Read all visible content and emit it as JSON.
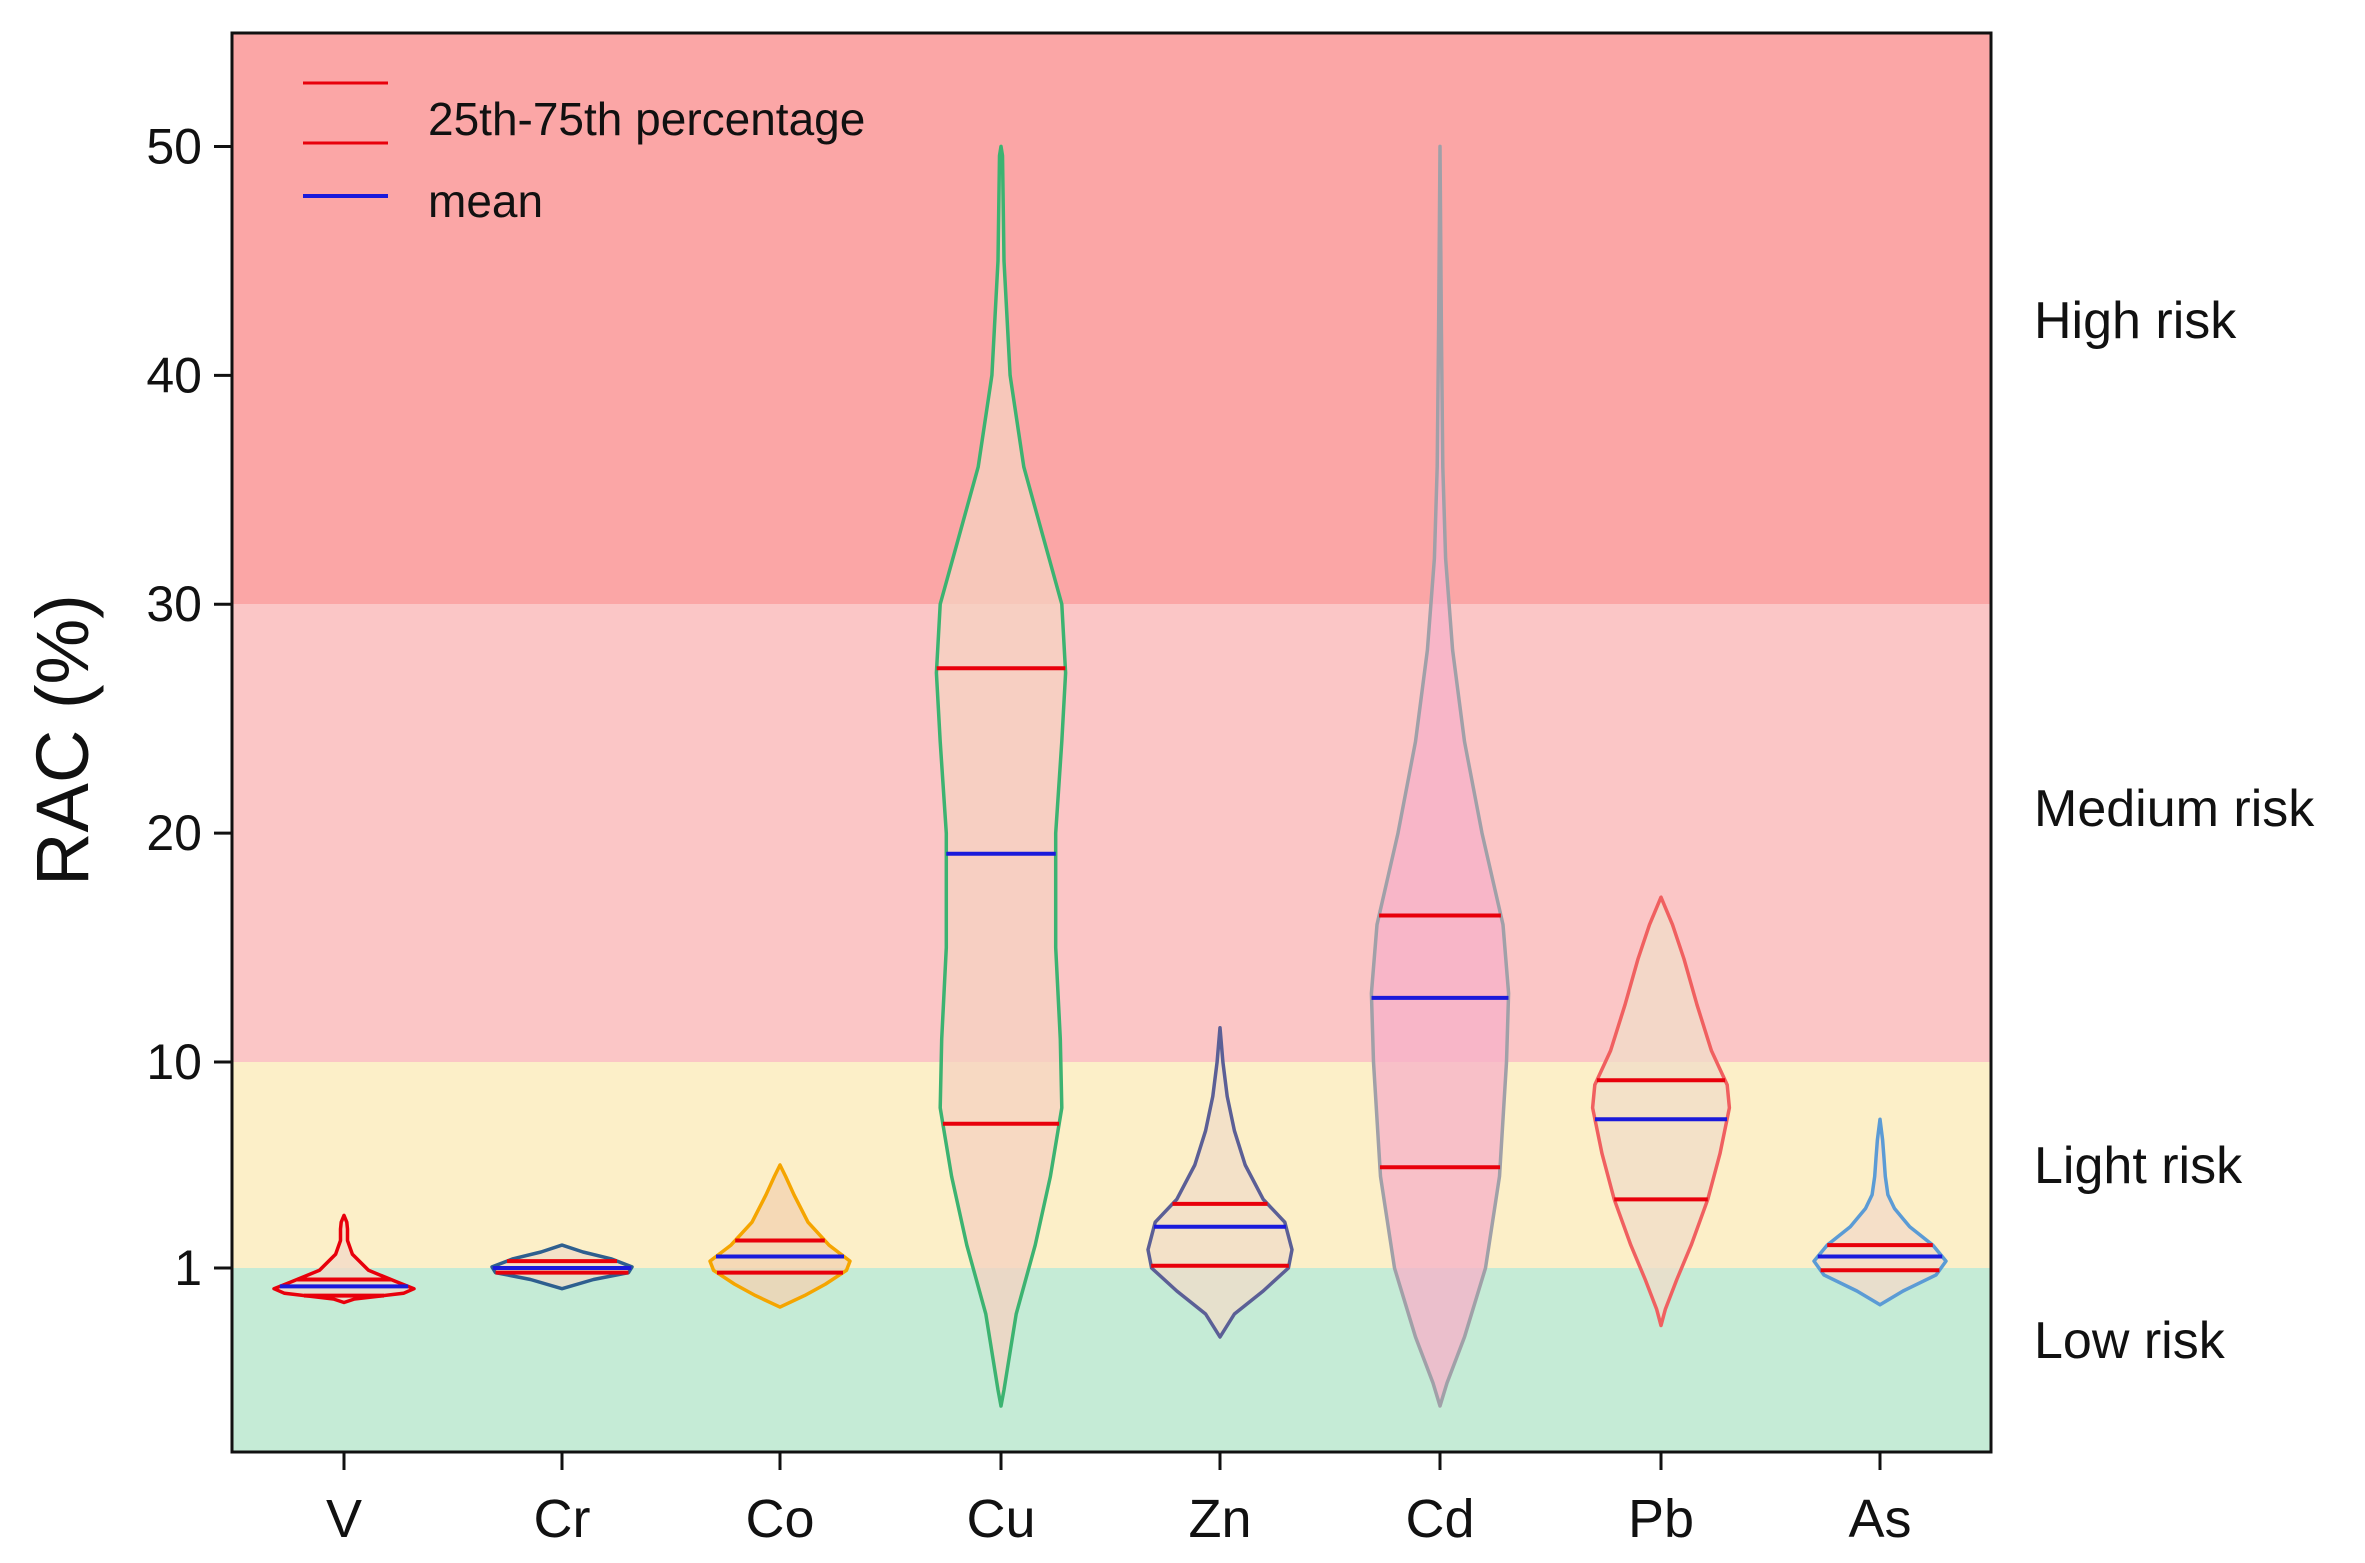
{
  "chart_data": {
    "type": "violin",
    "ylabel": "RAC (%)",
    "xlabel": "",
    "y_ticks": [
      1,
      10,
      20,
      30,
      40,
      50
    ],
    "y_tick_labels": [
      "1",
      "10",
      "20",
      "30",
      "40",
      "50"
    ],
    "ylim": [
      -7,
      55
    ],
    "categories": [
      "V",
      "Cr",
      "Co",
      "Cu",
      "Zn",
      "Cd",
      "Pb",
      "As"
    ],
    "legend": {
      "position": "top-left",
      "items": [
        {
          "label": "25th-75th percentage",
          "color": "#e8000b",
          "style": "double-line"
        },
        {
          "label": " mean",
          "color": "#1a1adb",
          "style": "line"
        }
      ]
    },
    "zones": [
      {
        "label": "Low risk",
        "from": -7,
        "to": 1,
        "color": "#c5ebd6"
      },
      {
        "label": "Light risk",
        "from": 1,
        "to": 10,
        "color": "#fcefc8"
      },
      {
        "label": "Medium risk",
        "from": 10,
        "to": 30,
        "color": "#fbc6c6"
      },
      {
        "label": "High risk",
        "from": 30,
        "to": 55,
        "color": "#fba6a6"
      }
    ],
    "violins": [
      {
        "name": "V",
        "outline": "#e8000b",
        "fill": "#f3d9c8",
        "min": -0.5,
        "max": 3.3,
        "q1": -0.2,
        "mean": 0.2,
        "q3": 0.5,
        "profile": [
          [
            -0.5,
            0.0
          ],
          [
            -0.35,
            0.15
          ],
          [
            -0.1,
            0.85
          ],
          [
            0.1,
            1.0
          ],
          [
            0.4,
            0.75
          ],
          [
            0.9,
            0.35
          ],
          [
            1.6,
            0.12
          ],
          [
            2.2,
            0.05
          ],
          [
            2.7,
            0.05
          ],
          [
            3.0,
            0.04
          ],
          [
            3.3,
            0.0
          ]
        ]
      },
      {
        "name": "Cr",
        "outline": "#2e5f8f",
        "fill": "#f0dcc8",
        "min": 0.1,
        "max": 2.0,
        "q1": 0.8,
        "mean": 1.0,
        "q3": 1.3,
        "profile": [
          [
            0.1,
            0.0
          ],
          [
            0.5,
            0.45
          ],
          [
            0.8,
            0.95
          ],
          [
            1.05,
            1.0
          ],
          [
            1.4,
            0.7
          ],
          [
            1.7,
            0.3
          ],
          [
            2.0,
            0.0
          ]
        ]
      },
      {
        "name": "Co",
        "outline": "#f5a500",
        "fill": "#f3d2b0",
        "min": -0.7,
        "max": 5.5,
        "q1": 0.8,
        "mean": 1.5,
        "q3": 2.2,
        "profile": [
          [
            -0.7,
            0.0
          ],
          [
            -0.2,
            0.35
          ],
          [
            0.3,
            0.65
          ],
          [
            0.9,
            0.95
          ],
          [
            1.3,
            1.0
          ],
          [
            2.0,
            0.7
          ],
          [
            3.0,
            0.4
          ],
          [
            4.2,
            0.2
          ],
          [
            5.0,
            0.08
          ],
          [
            5.5,
            0.0
          ]
        ]
      },
      {
        "name": "Cu",
        "outline": "#3cb371",
        "fill": "#f6d2c0",
        "min": -5.0,
        "max": 50.0,
        "q1": 7.3,
        "mean": 19.1,
        "q3": 27.2,
        "profile": [
          [
            -5.0,
            0.0
          ],
          [
            -4.3,
            0.04
          ],
          [
            -1.0,
            0.2
          ],
          [
            2.0,
            0.45
          ],
          [
            5.0,
            0.65
          ],
          [
            8.0,
            0.8
          ],
          [
            11.0,
            0.78
          ],
          [
            15.0,
            0.72
          ],
          [
            20.0,
            0.72
          ],
          [
            24.0,
            0.8
          ],
          [
            27.0,
            0.85
          ],
          [
            30.0,
            0.8
          ],
          [
            33.0,
            0.55
          ],
          [
            36.0,
            0.3
          ],
          [
            40.0,
            0.12
          ],
          [
            45.0,
            0.04
          ],
          [
            49.6,
            0.02
          ],
          [
            50.0,
            0.0
          ]
        ]
      },
      {
        "name": "Zn",
        "outline": "#5b5f96",
        "fill": "#f0dcc8",
        "min": -2.0,
        "max": 11.5,
        "q1": 1.1,
        "mean": 2.8,
        "q3": 3.8,
        "profile": [
          [
            -2.0,
            0.0
          ],
          [
            -1.0,
            0.2
          ],
          [
            0.0,
            0.6
          ],
          [
            1.0,
            0.95
          ],
          [
            1.8,
            1.0
          ],
          [
            3.0,
            0.9
          ],
          [
            4.0,
            0.6
          ],
          [
            5.5,
            0.35
          ],
          [
            7.0,
            0.2
          ],
          [
            8.5,
            0.1
          ],
          [
            10.0,
            0.04
          ],
          [
            11.5,
            0.0
          ]
        ]
      },
      {
        "name": "Cd",
        "outline": "#a0a0a8",
        "fill": "#f7b0c8",
        "min": -5.0,
        "max": 50.0,
        "q1": 5.4,
        "mean": 12.8,
        "q3": 16.4,
        "profile": [
          [
            -5.0,
            0.0
          ],
          [
            -4.0,
            0.1
          ],
          [
            -2.0,
            0.35
          ],
          [
            1.0,
            0.65
          ],
          [
            5.0,
            0.85
          ],
          [
            10.0,
            0.95
          ],
          [
            13.0,
            0.98
          ],
          [
            16.0,
            0.9
          ],
          [
            20.0,
            0.6
          ],
          [
            24.0,
            0.35
          ],
          [
            28.0,
            0.18
          ],
          [
            32.0,
            0.08
          ],
          [
            36.0,
            0.04
          ],
          [
            42.0,
            0.02
          ],
          [
            50.0,
            0.0
          ]
        ]
      },
      {
        "name": "Pb",
        "outline": "#f06060",
        "fill": "#f0dcc8",
        "min": -1.5,
        "max": 17.2,
        "q1": 4.0,
        "mean": 7.5,
        "q3": 9.2,
        "profile": [
          [
            -1.5,
            0.0
          ],
          [
            -0.8,
            0.06
          ],
          [
            0.5,
            0.22
          ],
          [
            2.0,
            0.42
          ],
          [
            4.0,
            0.65
          ],
          [
            6.0,
            0.82
          ],
          [
            8.0,
            0.95
          ],
          [
            9.0,
            0.92
          ],
          [
            10.5,
            0.7
          ],
          [
            12.5,
            0.5
          ],
          [
            14.5,
            0.32
          ],
          [
            16.0,
            0.16
          ],
          [
            17.2,
            0.0
          ]
        ]
      },
      {
        "name": "As",
        "outline": "#5b9bd5",
        "fill": "#f3d9c8",
        "min": -0.6,
        "max": 7.5,
        "q1": 0.9,
        "mean": 1.5,
        "q3": 2.0,
        "profile": [
          [
            -0.6,
            0.0
          ],
          [
            0.0,
            0.35
          ],
          [
            0.7,
            0.85
          ],
          [
            1.3,
            1.0
          ],
          [
            2.0,
            0.8
          ],
          [
            2.8,
            0.45
          ],
          [
            3.6,
            0.22
          ],
          [
            4.2,
            0.12
          ],
          [
            5.0,
            0.08
          ],
          [
            5.8,
            0.06
          ],
          [
            6.6,
            0.04
          ],
          [
            7.5,
            0.0
          ]
        ]
      }
    ]
  }
}
